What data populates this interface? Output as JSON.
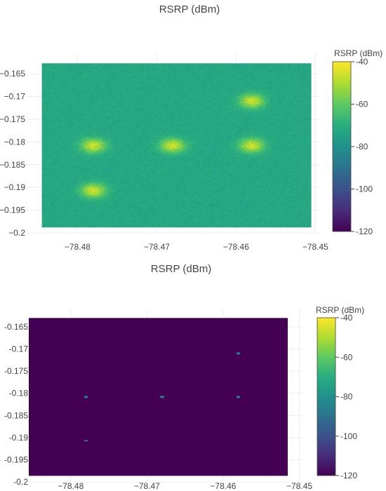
{
  "chart_data": [
    {
      "type": "heatmap",
      "title": "RSRP (dBm)",
      "colorbar_title": "RSRP (dBm)",
      "colorscale": "viridis",
      "zlim": [
        -120,
        -40
      ],
      "colorbar_ticks": [
        "-40",
        "-60",
        "-80",
        "-100",
        "-120"
      ],
      "colorbar_tick_values": [
        -40,
        -60,
        -80,
        -100,
        -120
      ],
      "xlim": [
        -78.4865,
        -78.4495
      ],
      "ylim": [
        -0.2,
        -0.1605
      ],
      "data_xlim": [
        -78.4845,
        -78.4505
      ],
      "data_ylim": [
        -0.1988,
        -0.1627
      ],
      "x_ticks": [
        "−78.48",
        "−78.47",
        "−78.46",
        "−78.45"
      ],
      "x_tick_values": [
        -78.48,
        -78.47,
        -78.46,
        -78.45
      ],
      "y_ticks": [
        "−0.165",
        "−0.17",
        "−0.175",
        "−0.18",
        "−0.185",
        "−0.19",
        "−0.195",
        "−0.2"
      ],
      "y_tick_values": [
        -0.165,
        -0.17,
        -0.175,
        -0.18,
        -0.185,
        -0.19,
        -0.195,
        -0.2
      ],
      "background_level": -72,
      "no_signal_level": -120,
      "transmitters": [
        {
          "x": -78.478,
          "y": -0.1808,
          "peak": -40
        },
        {
          "x": -78.468,
          "y": -0.1808,
          "peak": -40
        },
        {
          "x": -78.458,
          "y": -0.1808,
          "peak": -40
        },
        {
          "x": -78.458,
          "y": -0.171,
          "peak": -40
        },
        {
          "x": -78.478,
          "y": -0.1907,
          "peak": -40
        }
      ],
      "coverage_radius_deg": 0.0195
    },
    {
      "type": "heatmap",
      "title": "RSRP (dBm)",
      "colorbar_title": "RSRP (dBm)",
      "colorscale": "viridis",
      "zlim": [
        -120,
        -40
      ],
      "colorbar_ticks": [
        "-40",
        "-60",
        "-80",
        "-100",
        "-120"
      ],
      "colorbar_tick_values": [
        -40,
        -60,
        -80,
        -100,
        -120
      ],
      "xlim": [
        -78.4855,
        -78.4495
      ],
      "ylim": [
        -0.2,
        -0.1612
      ],
      "data_xlim": [
        -78.4855,
        -78.4515
      ],
      "data_ylim": [
        -0.1986,
        -0.163
      ],
      "x_ticks": [
        "−78.48",
        "−78.47",
        "−78.46",
        "−78.45"
      ],
      "x_tick_values": [
        -78.48,
        -78.47,
        -78.46,
        -78.45
      ],
      "y_ticks": [
        "-0.165",
        "-0.17",
        "-0.175",
        "-0.18",
        "-0.185",
        "-0.19",
        "-0.195",
        "-0.2"
      ],
      "y_tick_values": [
        -0.165,
        -0.17,
        -0.175,
        -0.18,
        -0.185,
        -0.19,
        -0.195,
        -0.2
      ],
      "background_level": -120,
      "transmitters": [
        {
          "x": -78.478,
          "y": -0.1808,
          "peak": -85
        },
        {
          "x": -78.468,
          "y": -0.1808,
          "peak": -85
        },
        {
          "x": -78.458,
          "y": -0.1808,
          "peak": -85
        },
        {
          "x": -78.458,
          "y": -0.171,
          "peak": -85
        },
        {
          "x": -78.478,
          "y": -0.1907,
          "peak": -85
        }
      ]
    }
  ]
}
